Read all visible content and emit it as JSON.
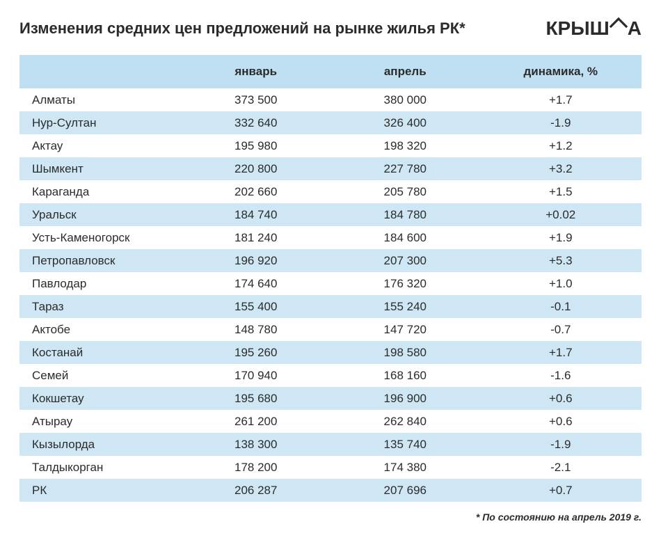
{
  "title": "Изменения средних цен предложений на рынке жилья РК*",
  "logo": {
    "text_left": "КРЫШ",
    "text_right": "А"
  },
  "footnote": "* По состоянию на апрель 2019 г.",
  "table": {
    "columns": [
      "",
      "январь",
      "апрель",
      "динамика, %"
    ],
    "col_widths_pct": [
      26,
      24,
      24,
      26
    ],
    "header_bg": "#bfe0f2",
    "row_even_bg": "#cfe7f4",
    "row_odd_bg": "#ffffff",
    "text_color": "#2b2b2b",
    "header_fontsize": 17,
    "cell_fontsize": 17,
    "rows": [
      {
        "city": "Алматы",
        "jan": "373 500",
        "apr": "380 000",
        "delta": "+1.7"
      },
      {
        "city": "Нур-Султан",
        "jan": "332 640",
        "apr": "326 400",
        "delta": "-1.9"
      },
      {
        "city": "Актау",
        "jan": "195 980",
        "apr": "198 320",
        "delta": "+1.2"
      },
      {
        "city": "Шымкент",
        "jan": "220 800",
        "apr": "227 780",
        "delta": "+3.2"
      },
      {
        "city": "Караганда",
        "jan": "202 660",
        "apr": "205 780",
        "delta": "+1.5"
      },
      {
        "city": "Уральск",
        "jan": "184 740",
        "apr": "184 780",
        "delta": "+0.02"
      },
      {
        "city": "Усть-Каменогорск",
        "jan": "181 240",
        "apr": "184 600",
        "delta": "+1.9"
      },
      {
        "city": "Петропавловск",
        "jan": "196 920",
        "apr": "207 300",
        "delta": "+5.3"
      },
      {
        "city": "Павлодар",
        "jan": "174 640",
        "apr": "176 320",
        "delta": "+1.0"
      },
      {
        "city": "Тараз",
        "jan": "155 400",
        "apr": "155 240",
        "delta": "-0.1"
      },
      {
        "city": "Актобе",
        "jan": "148 780",
        "apr": "147 720",
        "delta": "-0.7"
      },
      {
        "city": "Костанай",
        "jan": "195 260",
        "apr": "198 580",
        "delta": "+1.7"
      },
      {
        "city": "Семей",
        "jan": "170 940",
        "apr": "168 160",
        "delta": "-1.6"
      },
      {
        "city": "Кокшетау",
        "jan": "195 680",
        "apr": "196 900",
        "delta": "+0.6"
      },
      {
        "city": "Атырау",
        "jan": "261 200",
        "apr": "262 840",
        "delta": "+0.6"
      },
      {
        "city": "Кызылорда",
        "jan": "138 300",
        "apr": "135 740",
        "delta": "-1.9"
      },
      {
        "city": "Талдыкорган",
        "jan": "178 200",
        "apr": "174 380",
        "delta": "-2.1"
      },
      {
        "city": "РК",
        "jan": "206 287",
        "apr": "207 696",
        "delta": "+0.7"
      }
    ]
  }
}
